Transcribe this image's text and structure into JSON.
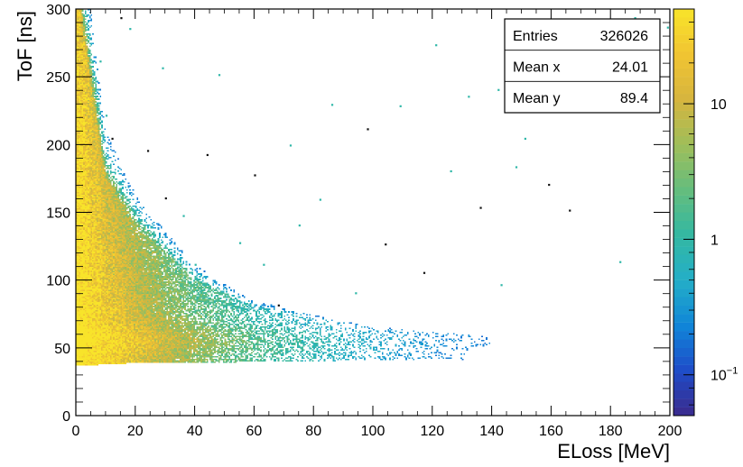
{
  "chart_data": {
    "type": "heatmap",
    "title": "",
    "xlabel": "ELoss [MeV]",
    "ylabel": "ToF [ns]",
    "xlim": [
      0,
      200
    ],
    "ylim": [
      0,
      300
    ],
    "x_ticks": [
      0,
      20,
      40,
      60,
      80,
      100,
      120,
      140,
      160,
      180,
      200
    ],
    "y_ticks": [
      0,
      50,
      100,
      150,
      200,
      250,
      300
    ],
    "z_scale": "log",
    "colorbar_ticks": [
      {
        "label": "10",
        "exp": "",
        "value": 10
      },
      {
        "label": "1",
        "exp": "",
        "value": 1
      },
      {
        "label": "10",
        "exp": "−1",
        "value": 0.1
      }
    ],
    "colorbar_range": [
      0.05,
      50
    ],
    "colorbar_palette": [
      "#3b2a8c",
      "#1e4cc8",
      "#1086d8",
      "#24aec7",
      "#33b8a2",
      "#65bd7d",
      "#9fbe5a",
      "#d6b53e",
      "#f1c432",
      "#f8e42a"
    ],
    "density_model": {
      "description": "counts concentrated near low ELoss with ToF decreasing roughly as a hyperbola toward ~45 ns",
      "ridge": [
        {
          "x": 1,
          "y_min": 38,
          "y_max": 300
        },
        {
          "x": 10,
          "y_min": 39,
          "y_max": 175
        },
        {
          "x": 20,
          "y_min": 40,
          "y_max": 140
        },
        {
          "x": 40,
          "y_min": 40,
          "y_max": 100
        },
        {
          "x": 60,
          "y_min": 41,
          "y_max": 80
        },
        {
          "x": 100,
          "y_min": 42,
          "y_max": 64
        },
        {
          "x": 150,
          "y_min": 42,
          "y_max": 57
        },
        {
          "x": 200,
          "y_min": 40,
          "y_max": 52
        }
      ]
    },
    "stats": {
      "entries_label": "Entries",
      "entries_value": "326026",
      "meanx_label": "Mean x",
      "meanx_value": "24.01",
      "meany_label": "Mean y",
      "meany_value": "89.4"
    }
  }
}
